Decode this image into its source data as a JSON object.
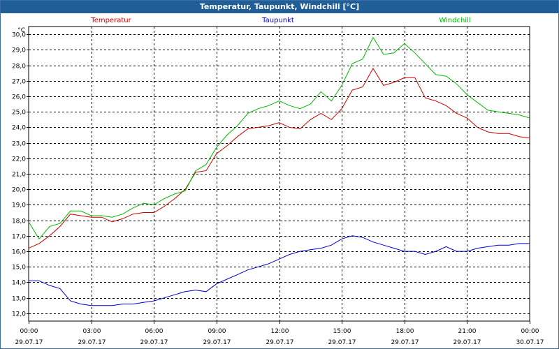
{
  "window": {
    "title": "Temperatur, Taupunkt, Windchill [°C]"
  },
  "chart_data": {
    "type": "line",
    "title": "Temperatur, Taupunkt, Windchill [°C]",
    "ylabel": "°C",
    "xlabel": "",
    "ylim": [
      11.5,
      30.5
    ],
    "xlim": [
      0,
      24
    ],
    "grid": true,
    "y_ticks": [
      12.0,
      13.0,
      14.0,
      15.0,
      16.0,
      17.0,
      18.0,
      19.0,
      20.0,
      21.0,
      22.0,
      23.0,
      24.0,
      25.0,
      26.0,
      27.0,
      28.0,
      29.0,
      30.0
    ],
    "y_tick_labels": [
      "12,0",
      "13,0",
      "14,0",
      "15,0",
      "16,0",
      "17,0",
      "18,0",
      "19,0",
      "20,0",
      "21,0",
      "22,0",
      "23,0",
      "24,0",
      "25,0",
      "26,0",
      "27,0",
      "28,0",
      "29,0",
      "30,0"
    ],
    "x_ticks": [
      0,
      3,
      6,
      9,
      12,
      15,
      18,
      21,
      24
    ],
    "x_tick_times": [
      "00:00",
      "03:00",
      "06:00",
      "09:00",
      "12:00",
      "15:00",
      "18:00",
      "21:00",
      "00:00"
    ],
    "x_tick_dates": [
      "29.07.17",
      "29.07.17",
      "29.07.17",
      "29.07.17",
      "29.07.17",
      "29.07.17",
      "29.07.17",
      "29.07.17",
      "30.07.17"
    ],
    "series": [
      {
        "name": "Temperatur",
        "color": "#cc0000",
        "x": [
          0,
          0.5,
          1,
          1.5,
          2,
          2.5,
          3,
          3.5,
          4,
          4.5,
          5,
          5.5,
          6,
          6.5,
          7,
          7.5,
          8,
          8.5,
          9,
          9.5,
          10,
          10.5,
          11,
          11.5,
          12,
          12.5,
          13,
          13.5,
          14,
          14.5,
          15,
          15.5,
          16,
          16.5,
          17,
          17.5,
          18,
          18.5,
          19,
          19.5,
          20,
          20.5,
          21,
          21.5,
          22,
          22.5,
          23,
          23.5,
          24
        ],
        "values": [
          16.2,
          16.5,
          17.0,
          17.6,
          18.4,
          18.3,
          18.2,
          18.2,
          17.9,
          18.1,
          18.4,
          18.5,
          18.5,
          18.9,
          19.4,
          20.0,
          21.1,
          21.2,
          22.3,
          22.8,
          23.4,
          23.9,
          24.0,
          24.1,
          24.3,
          24.0,
          23.9,
          24.5,
          24.9,
          24.5,
          25.2,
          26.4,
          26.6,
          27.8,
          26.7,
          26.9,
          27.2,
          27.2,
          25.9,
          25.7,
          25.4,
          24.9,
          24.6,
          24.0,
          23.7,
          23.6,
          23.6,
          23.4,
          23.3
        ]
      },
      {
        "name": "Taupunkt",
        "color": "#0000cc",
        "x": [
          0,
          0.5,
          1,
          1.5,
          2,
          2.5,
          3,
          3.5,
          4,
          4.5,
          5,
          5.5,
          6,
          6.5,
          7,
          7.5,
          8,
          8.5,
          9,
          9.5,
          10,
          10.5,
          11,
          11.5,
          12,
          12.5,
          13,
          13.5,
          14,
          14.5,
          15,
          15.5,
          16,
          16.5,
          17,
          17.5,
          18,
          18.5,
          19,
          19.5,
          20,
          20.5,
          21,
          21.5,
          22,
          22.5,
          23,
          23.5,
          24
        ],
        "values": [
          14.1,
          14.1,
          13.8,
          13.6,
          12.8,
          12.6,
          12.5,
          12.5,
          12.5,
          12.6,
          12.6,
          12.7,
          12.8,
          13.0,
          13.2,
          13.4,
          13.5,
          13.4,
          13.9,
          14.2,
          14.5,
          14.8,
          15.0,
          15.2,
          15.5,
          15.8,
          16.0,
          16.1,
          16.2,
          16.4,
          16.8,
          17.0,
          16.9,
          16.6,
          16.4,
          16.2,
          16.0,
          16.0,
          15.8,
          16.0,
          16.3,
          16.0,
          16.0,
          16.2,
          16.3,
          16.4,
          16.4,
          16.5,
          16.5
        ]
      },
      {
        "name": "Windchill",
        "color": "#00bb00",
        "x": [
          0,
          0.5,
          1,
          1.5,
          2,
          2.5,
          3,
          3.5,
          4,
          4.5,
          5,
          5.5,
          6,
          6.5,
          7,
          7.5,
          8,
          8.5,
          9,
          9.5,
          10,
          10.5,
          11,
          11.5,
          12,
          12.5,
          13,
          13.5,
          14,
          14.5,
          15,
          15.5,
          16,
          16.5,
          17,
          17.5,
          18,
          18.5,
          19,
          19.5,
          20,
          20.5,
          21,
          21.5,
          22,
          22.5,
          23,
          23.5,
          24
        ],
        "values": [
          17.9,
          16.8,
          17.6,
          17.8,
          18.6,
          18.6,
          18.3,
          18.3,
          18.2,
          18.4,
          18.8,
          19.1,
          19.0,
          19.4,
          19.7,
          19.9,
          21.2,
          21.6,
          22.7,
          23.5,
          24.1,
          24.9,
          25.2,
          25.4,
          25.7,
          25.4,
          25.2,
          25.5,
          26.3,
          25.7,
          26.7,
          28.1,
          28.4,
          29.8,
          28.7,
          28.8,
          29.4,
          28.8,
          28.1,
          27.4,
          27.3,
          26.8,
          26.1,
          25.6,
          25.1,
          25.0,
          24.9,
          24.8,
          24.6
        ]
      }
    ]
  }
}
